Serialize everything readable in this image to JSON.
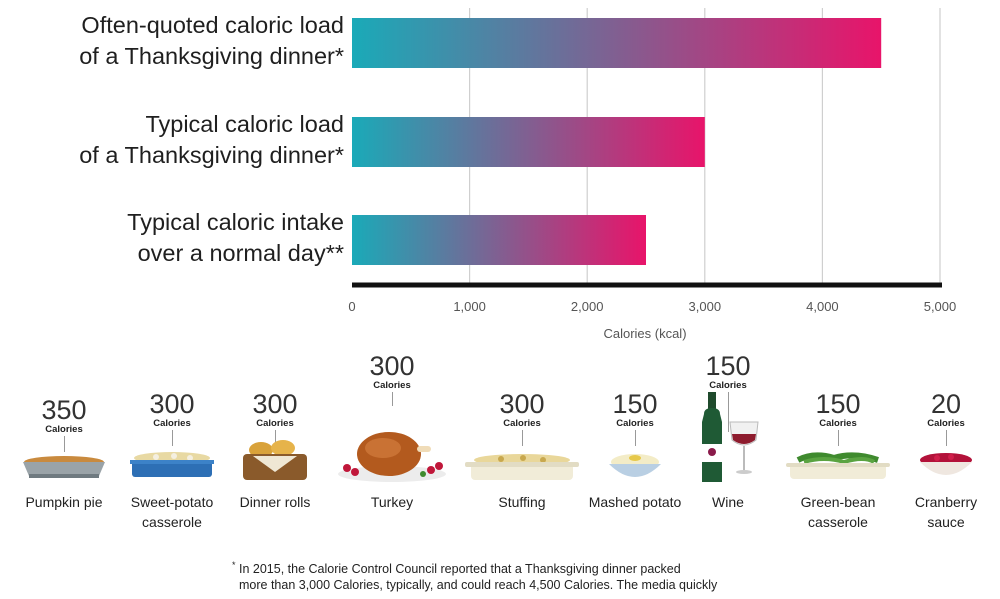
{
  "chart_data": {
    "type": "bar",
    "orientation": "horizontal",
    "categories": [
      [
        "Often-quoted caloric load",
        "of a Thanksgiving dinner*"
      ],
      [
        "Typical caloric load",
        "of a Thanksgiving dinner*"
      ],
      [
        "Typical caloric intake",
        "over a normal day**"
      ]
    ],
    "values": [
      4500,
      3000,
      2500
    ],
    "xlabel": "Calories (kcal)",
    "xlim": [
      0,
      5000
    ],
    "xticks": [
      0,
      1000,
      2000,
      3000,
      4000,
      5000
    ],
    "xtick_labels": [
      "0",
      "1,000",
      "2,000",
      "3,000",
      "4,000",
      "5,000"
    ],
    "grid": "vertical",
    "bar_gradient": [
      "#1aaab8",
      "#e8146a"
    ]
  },
  "foods": [
    {
      "calories": "350",
      "unit": "Calories",
      "name_lines": [
        "Pumpkin pie"
      ],
      "icon": "pumpkin-pie-icon"
    },
    {
      "calories": "300",
      "unit": "Calories",
      "name_lines": [
        "Sweet-potato",
        "casserole"
      ],
      "icon": "sweet-potato-casserole-icon"
    },
    {
      "calories": "300",
      "unit": "Calories",
      "name_lines": [
        "Dinner rolls"
      ],
      "icon": "dinner-rolls-icon"
    },
    {
      "calories": "300",
      "unit": "Calories",
      "name_lines": [
        "Turkey"
      ],
      "icon": "turkey-icon"
    },
    {
      "calories": "300",
      "unit": "Calories",
      "name_lines": [
        "Stuffing"
      ],
      "icon": "stuffing-icon"
    },
    {
      "calories": "150",
      "unit": "Calories",
      "name_lines": [
        "Mashed potato"
      ],
      "icon": "mashed-potato-icon"
    },
    {
      "calories": "150",
      "unit": "Calories",
      "name_lines": [
        "Wine"
      ],
      "icon": "wine-icon"
    },
    {
      "calories": "150",
      "unit": "Calories",
      "name_lines": [
        "Green-bean",
        "casserole"
      ],
      "icon": "green-bean-casserole-icon"
    },
    {
      "calories": "20",
      "unit": "Calories",
      "name_lines": [
        "Cranberry",
        "sauce"
      ],
      "icon": "cranberry-sauce-icon"
    }
  ],
  "footnote": {
    "marker": "*",
    "lines": [
      "In 2015, the Calorie Control Council reported that a Thanksgiving dinner packed",
      "more than 3,000 Calories, typically, and could reach 4,500 Calories. The media quickly"
    ]
  }
}
